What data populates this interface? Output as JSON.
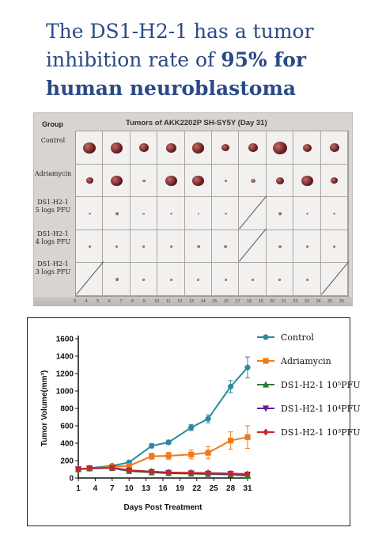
{
  "headline": {
    "line1": "The DS1-H2-1 has a tumor",
    "line2_plain": "inhibition rate of ",
    "line2_bold": "95% for",
    "line3_bold": "human neuroblastoma"
  },
  "photo_panel": {
    "group_label": "Group",
    "plate_title": "Tumors of AKK2202P SH-SY5Y (Day 31)",
    "groups": [
      {
        "label_lines": [
          "Control"
        ]
      },
      {
        "label_lines": [
          "Adriamycin"
        ]
      },
      {
        "label_lines": [
          "DS1-H2-1",
          "5 logs PFU"
        ]
      },
      {
        "label_lines": [
          "DS1-H2-1",
          "4 logs PFU"
        ]
      },
      {
        "label_lines": [
          "DS1-H2-1",
          "3 logs PFU"
        ]
      }
    ],
    "ruler_labels": [
      "3",
      "4",
      "5",
      "6",
      "7",
      "8",
      "9",
      "10",
      "11",
      "12",
      "13",
      "14",
      "15",
      "16",
      "17",
      "18",
      "19",
      "20",
      "21",
      "22",
      "23",
      "24",
      "25",
      "26"
    ]
  },
  "chart_data": {
    "type": "line",
    "xlabel": "Days Post Treatment",
    "ylabel": "Tumor Volume(mm³)",
    "xticks": [
      1,
      4,
      7,
      10,
      13,
      16,
      19,
      22,
      25,
      28,
      31
    ],
    "yticks": [
      0,
      200,
      400,
      600,
      800,
      1000,
      1200,
      1400,
      1600
    ],
    "xlim": [
      1,
      31
    ],
    "ylim": [
      0,
      1600
    ],
    "x": [
      1,
      3,
      7,
      10,
      14,
      17,
      21,
      24,
      28,
      31
    ],
    "series": [
      {
        "name": "Control",
        "color": "#2a8aa0",
        "marker": "circle",
        "values": [
          100,
          115,
          140,
          180,
          370,
          410,
          580,
          680,
          1050,
          1270
        ],
        "errors": [
          10,
          12,
          15,
          20,
          25,
          25,
          35,
          45,
          70,
          120
        ]
      },
      {
        "name": "Adriamycin",
        "color": "#f07a1a",
        "marker": "square",
        "values": [
          100,
          110,
          130,
          140,
          250,
          255,
          270,
          290,
          430,
          470
        ],
        "errors": [
          10,
          10,
          15,
          15,
          35,
          40,
          50,
          70,
          100,
          130
        ]
      },
      {
        "name": "DS1-H2-1 10⁵PFU",
        "color": "#2e7d32",
        "marker": "triangle",
        "values": [
          100,
          110,
          115,
          80,
          65,
          55,
          50,
          45,
          40,
          25
        ],
        "errors": [
          8,
          8,
          8,
          8,
          8,
          8,
          8,
          8,
          8,
          6
        ]
      },
      {
        "name": "DS1-H2-1 10⁴PFU",
        "color": "#6a1b9a",
        "marker": "triangle-down",
        "values": [
          100,
          110,
          115,
          85,
          70,
          60,
          55,
          50,
          48,
          40
        ],
        "errors": [
          8,
          8,
          8,
          8,
          8,
          8,
          8,
          8,
          8,
          6
        ]
      },
      {
        "name": "DS1-H2-1 10³PFU",
        "color": "#c62828",
        "marker": "diamond",
        "values": [
          100,
          112,
          118,
          90,
          75,
          65,
          60,
          58,
          52,
          45
        ],
        "errors": [
          8,
          8,
          8,
          8,
          8,
          8,
          8,
          8,
          8,
          6
        ]
      }
    ]
  }
}
